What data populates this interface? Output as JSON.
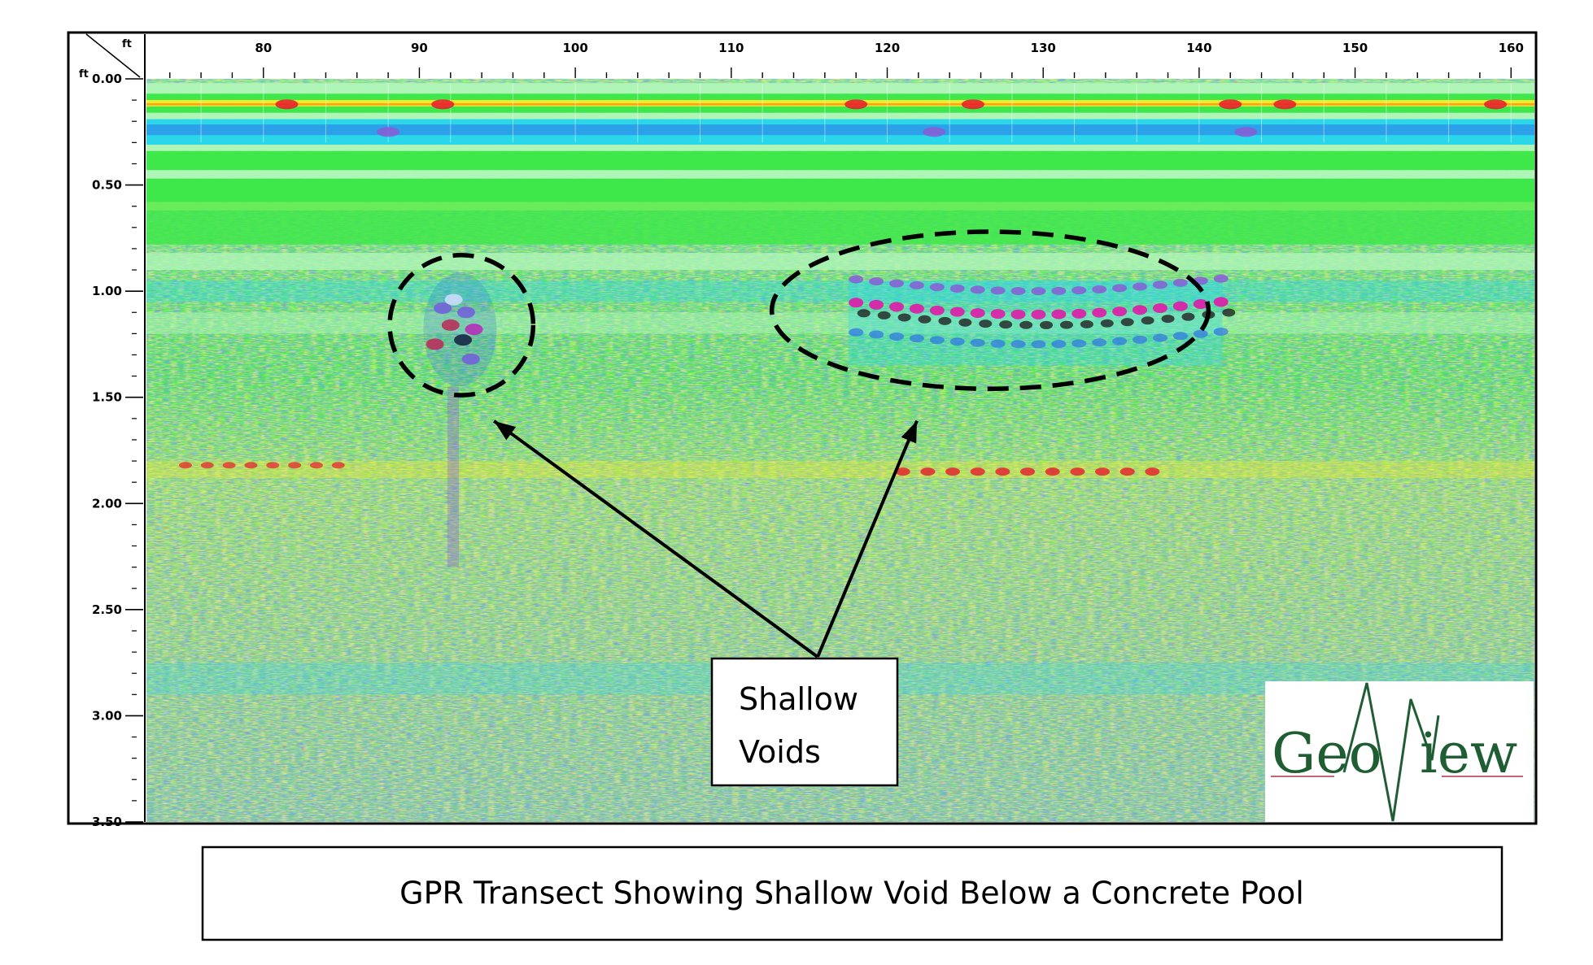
{
  "chart_data": {
    "type": "heatmap",
    "title": "",
    "xlabel": "ft",
    "ylabel": "ft",
    "xlim": [
      72.5,
      161.5
    ],
    "ylim": [
      3.5,
      0.0
    ],
    "x_ticks": [
      80,
      90,
      100,
      110,
      120,
      130,
      140,
      150,
      160
    ],
    "y_ticks": [
      0.0,
      0.5,
      1.0,
      1.5,
      2.0,
      2.5,
      3.0,
      3.5
    ],
    "y_tick_labels": [
      "0.00",
      "0.50",
      "1.00",
      "1.50",
      "2.00",
      "2.50",
      "3.00",
      "3.50"
    ],
    "x_minor_step": 2,
    "y_minor_step": 0.1,
    "annotations": [
      {
        "label_ref": "callout",
        "shape": "dashed-ellipse",
        "center": {
          "x": 92.7,
          "depth": 1.16
        },
        "radius": {
          "x": 4.6,
          "depth": 0.33
        }
      },
      {
        "label_ref": "callout",
        "shape": "dashed-ellipse",
        "center": {
          "x": 126.6,
          "depth": 1.09
        },
        "radius": {
          "x": 14.0,
          "depth": 0.37
        }
      }
    ],
    "grid": false,
    "legend": "none"
  },
  "callout": {
    "line1": "Shallow",
    "line2": "Voids"
  },
  "caption": "GPR Transect Showing Shallow Void Below a Concrete Pool",
  "logo": {
    "left": "Geo",
    "right": "iew"
  },
  "colors": {
    "frame": "#000000",
    "scan_green": "#3ee84a",
    "scan_light_green": "#b0f5b8",
    "scan_yellow": "#f2ec2a",
    "scan_orange": "#ff9a1a",
    "scan_red": "#e8192c",
    "scan_cyan": "#29d6ea",
    "scan_blue": "#2f74e6",
    "scan_purple": "#8a5cd6",
    "scan_magenta": "#e01aa8",
    "logo_green": "#1f5e32",
    "logo_red": "#b0304a"
  }
}
